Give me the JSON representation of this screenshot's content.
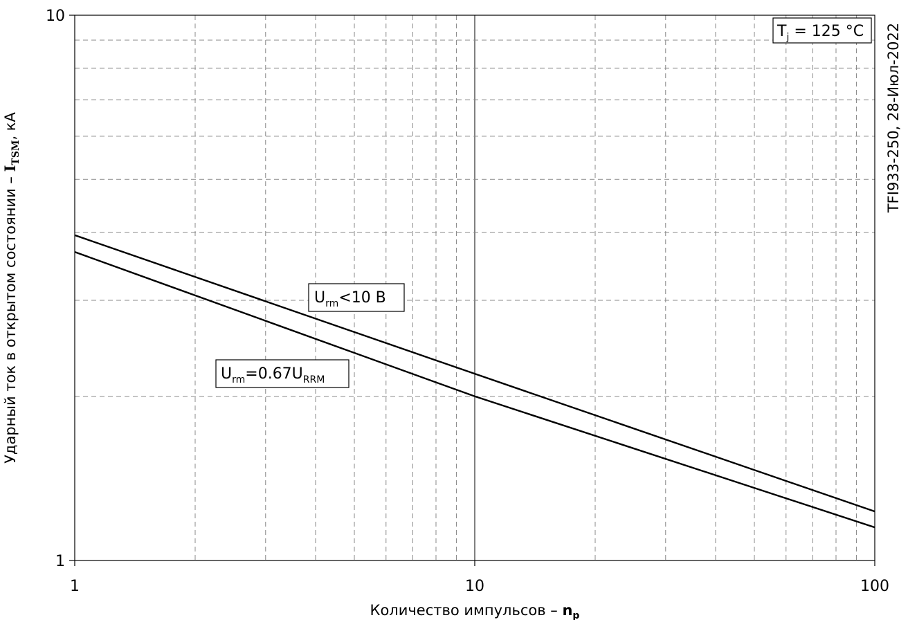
{
  "chart_data": {
    "type": "line",
    "x_scale": "log",
    "y_scale": "log",
    "xlim": [
      1,
      100
    ],
    "ylim": [
      1,
      10
    ],
    "grid": true,
    "x_ticks": [
      "1",
      "10",
      "100"
    ],
    "y_ticks": [
      "1",
      "10"
    ],
    "xlabel": {
      "text": "Количество импульсов  – ",
      "bold": "n",
      "sub": "p"
    },
    "ylabel": {
      "text": "Ударный ток в открытом состоянии – ",
      "bold": "I",
      "sub": "TSM",
      "unit": ", кА"
    },
    "watermark": "TFI933-250, 28-Июл-2022",
    "temperature_label": {
      "main": "T",
      "sub": "j",
      "rest": " = 125 °C"
    },
    "series": [
      {
        "name": "Urm<10 В",
        "label": {
          "main": "U",
          "sub": "rm",
          "rest": "<10 В"
        },
        "x": [
          1,
          10,
          100
        ],
        "y": [
          3.95,
          2.2,
          1.23
        ]
      },
      {
        "name": "Urm=0.67URRM",
        "label": {
          "main": "U",
          "sub": "rm",
          "rest": "=0.67U",
          "sub2": "RRM"
        },
        "x": [
          1,
          10,
          100
        ],
        "y": [
          3.68,
          2.0,
          1.15
        ]
      }
    ]
  }
}
